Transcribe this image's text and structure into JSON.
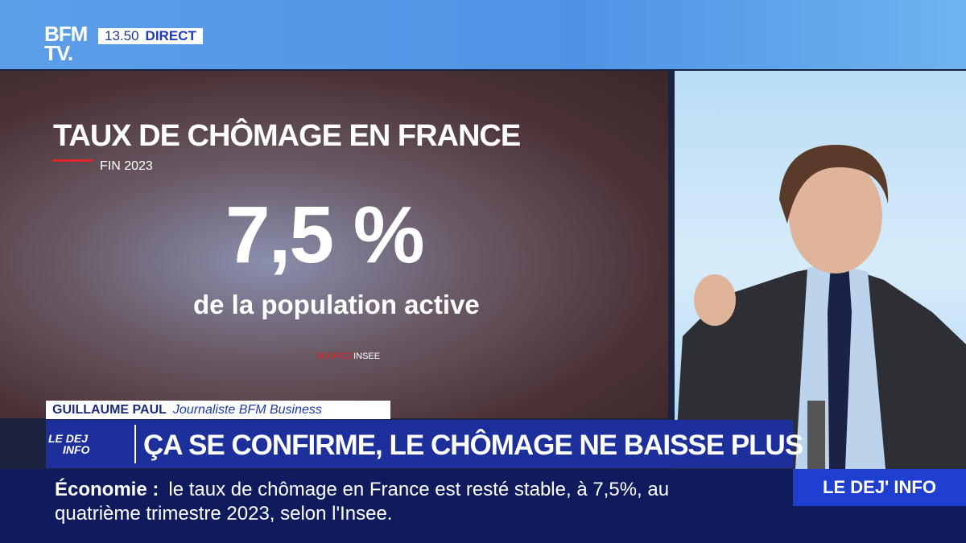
{
  "header": {
    "logo_top": "BFM",
    "logo_bottom": "TV.",
    "time": "13.50",
    "live": "DIRECT"
  },
  "graphic": {
    "title": "TAUX DE CHÔMAGE EN FRANCE",
    "subtitle": "FIN 2023",
    "figure": "7,5 %",
    "caption": "de la population active",
    "source_label": "SOURCE",
    "source": "INSEE"
  },
  "lower_third": {
    "name": "GUILLAUME PAUL",
    "role": "Journaliste BFM Business",
    "show_logo_top": "LE DEJ",
    "show_logo_bottom": "INFO",
    "headline": "ÇA SE CONFIRME, LE CHÔMAGE NE BAISSE PLUS"
  },
  "ticker": {
    "section": "Économie :",
    "lines": [
      "le taux de chômage en France est resté stable, à 7,5%, au",
      "quatrième trimestre 2023, selon l'Insee."
    ],
    "show": "LE DEJ' INFO"
  }
}
